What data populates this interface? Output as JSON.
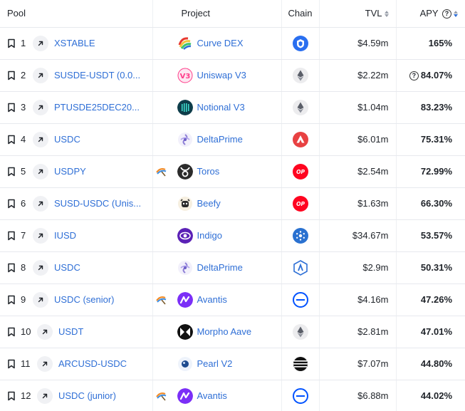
{
  "header": {
    "pool": "Pool",
    "project": "Project",
    "chain": "Chain",
    "tvl": "TVL",
    "apy": "APY",
    "help_glyph": "?"
  },
  "rows": [
    {
      "rank": "1",
      "pool": "XSTABLE",
      "project": "Curve DEX",
      "project_icon": "curve-logo-icon",
      "yield_icon": false,
      "chain_icon": "chain-blue-shield-icon",
      "tvl": "$4.59m",
      "apy": "165%",
      "apy_help": false
    },
    {
      "rank": "2",
      "pool": "SUSDE-USDT (0.0...",
      "project": "Uniswap V3",
      "project_icon": "uniswap-logo-icon",
      "yield_icon": false,
      "chain_icon": "ethereum-icon",
      "tvl": "$2.22m",
      "apy": "84.07%",
      "apy_help": true
    },
    {
      "rank": "3",
      "pool": "PTUSDE25DEC20...",
      "project": "Notional V3",
      "project_icon": "notional-logo-icon",
      "yield_icon": false,
      "chain_icon": "ethereum-icon",
      "tvl": "$1.04m",
      "apy": "83.23%",
      "apy_help": false
    },
    {
      "rank": "4",
      "pool": "USDC",
      "project": "DeltaPrime",
      "project_icon": "deltaprime-logo-icon",
      "yield_icon": false,
      "chain_icon": "avalanche-icon",
      "tvl": "$6.01m",
      "apy": "75.31%",
      "apy_help": false
    },
    {
      "rank": "5",
      "pool": "USDPY",
      "project": "Toros",
      "project_icon": "toros-logo-icon",
      "yield_icon": true,
      "chain_icon": "optimism-icon",
      "tvl": "$2.54m",
      "apy": "72.99%",
      "apy_help": false
    },
    {
      "rank": "6",
      "pool": "SUSD-USDC (Unis...",
      "project": "Beefy",
      "project_icon": "beefy-logo-icon",
      "yield_icon": false,
      "chain_icon": "optimism-icon",
      "tvl": "$1.63m",
      "apy": "66.30%",
      "apy_help": false
    },
    {
      "rank": "7",
      "pool": "IUSD",
      "project": "Indigo",
      "project_icon": "indigo-logo-icon",
      "yield_icon": false,
      "chain_icon": "cardano-icon",
      "tvl": "$34.67m",
      "apy": "53.57%",
      "apy_help": false
    },
    {
      "rank": "8",
      "pool": "USDC",
      "project": "DeltaPrime",
      "project_icon": "deltaprime-logo-icon",
      "yield_icon": false,
      "chain_icon": "arbitrum-icon",
      "tvl": "$2.9m",
      "apy": "50.31%",
      "apy_help": false
    },
    {
      "rank": "9",
      "pool": "USDC (senior)",
      "project": "Avantis",
      "project_icon": "avantis-logo-icon",
      "yield_icon": true,
      "chain_icon": "base-icon",
      "tvl": "$4.16m",
      "apy": "47.26%",
      "apy_help": false
    },
    {
      "rank": "10",
      "pool": "USDT",
      "project": "Morpho Aave",
      "project_icon": "morpho-logo-icon",
      "yield_icon": false,
      "chain_icon": "ethereum-icon",
      "tvl": "$2.81m",
      "apy": "47.01%",
      "apy_help": false
    },
    {
      "rank": "11",
      "pool": "ARCUSD-USDC",
      "project": "Pearl V2",
      "project_icon": "pearl-logo-icon",
      "yield_icon": false,
      "chain_icon": "chain-striped-icon",
      "tvl": "$7.07m",
      "apy": "44.80%",
      "apy_help": false
    },
    {
      "rank": "12",
      "pool": "USDC (junior)",
      "project": "Avantis",
      "project_icon": "avantis-logo-icon",
      "yield_icon": true,
      "chain_icon": "base-icon",
      "tvl": "$6.88m",
      "apy": "44.02%",
      "apy_help": false
    }
  ],
  "colors": {
    "link": "#2f6fd6",
    "sort_active": "#2f6fd6",
    "ethereum": "#6f7380",
    "avalanche": "#e84142",
    "optimism": "#ff0420",
    "base": "#0052ff",
    "cardano": "#2a71d0"
  }
}
